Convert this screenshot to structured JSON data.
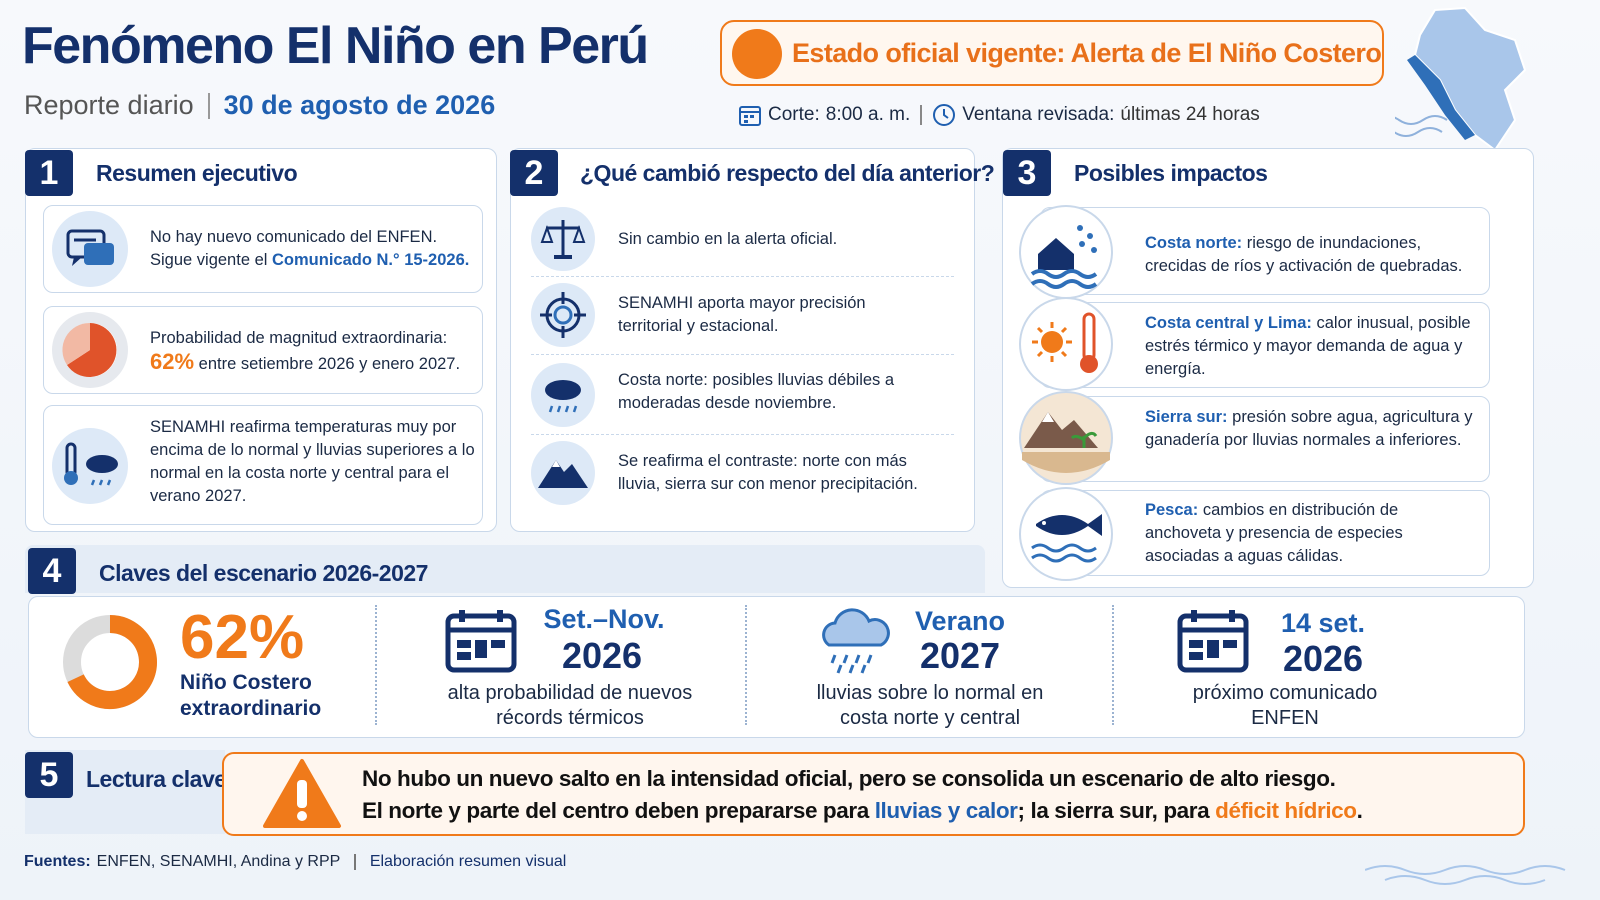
{
  "header": {
    "title": "Fenómeno El Niño en Perú",
    "subtitle": "Reporte diario",
    "date": "30 de agosto de 2026",
    "status": "Estado oficial vigente: Alerta de El Niño Costero",
    "cutoff_label": "Corte:",
    "cutoff": "8:00 a. m.",
    "window_label": "Ventana revisada:",
    "window": "últimas 24 horas"
  },
  "summary": {
    "number": "1",
    "title": "Resumen ejecutivo",
    "items": [
      {
        "line1": "No hay nuevo comunicado del ENFEN.",
        "line2": "Sigue vigente el",
        "link": "Comunicado N.° 15-2026."
      },
      {
        "line1": "Probabilidad de magnitud extraordinaria:",
        "highlight": "62%",
        "line2": "entre setiembre 2026 y enero 2027."
      },
      {
        "text": "SENAMHI reafirma temperaturas muy por encima de lo normal y lluvias superiores a lo normal en la costa norte y central para el verano 2027."
      }
    ]
  },
  "changes": {
    "number": "2",
    "title": "¿Qué cambió respecto del día anterior?",
    "items": [
      "Sin cambio en la alerta oficial.",
      "SENAMHI aporta mayor precisión territorial y estacional.",
      "Costa norte: posibles lluvias débiles a moderadas desde noviembre.",
      "Se reafirma el contraste: norte con más lluvia, sierra sur con menor precipitación."
    ]
  },
  "impacts": {
    "number": "3",
    "title": "Posibles impactos",
    "items": [
      {
        "label": "Costa norte:",
        "text": "riesgo de inundaciones, crecidas de ríos y activación de quebradas."
      },
      {
        "label": "Costa central y Lima:",
        "text": "calor inusual, posible estrés térmico y mayor demanda de agua y energía."
      },
      {
        "label": "Sierra sur:",
        "text": "presión sobre agua, agricultura y ganadería por lluvias normales a inferiores."
      },
      {
        "label": "Pesca:",
        "text": "cambios en distribución de anchoveta y presencia de especies asociadas a aguas cálidas."
      }
    ]
  },
  "scenario": {
    "number": "4",
    "title": "Claves del escenario 2026-2027",
    "keys": [
      {
        "big": "62%",
        "caption": "Niño Costero extraordinario"
      },
      {
        "title": "Set.–Nov.",
        "year": "2026",
        "caption": "alta probabilidad de nuevos récords térmicos"
      },
      {
        "title": "Verano",
        "year": "2027",
        "caption": "lluvias sobre lo normal en costa norte y central"
      },
      {
        "title": "14 set.",
        "year": "2026",
        "caption": "próximo comunicado ENFEN"
      }
    ]
  },
  "reading": {
    "number": "5",
    "title": "Lectura clave",
    "line1": "No hubo un nuevo salto en la intensidad oficial, pero se consolida un escenario de alto riesgo.",
    "line2": [
      "El norte y parte del centro deben prepararse para",
      "lluvias y calor",
      "; la sierra sur, para",
      "déficit hídrico",
      "."
    ]
  },
  "footer": {
    "sources_label": "Fuentes:",
    "sources": "ENFEN, SENAMHI, Andina y RPP",
    "credit": "Elaboración resumen visual"
  }
}
